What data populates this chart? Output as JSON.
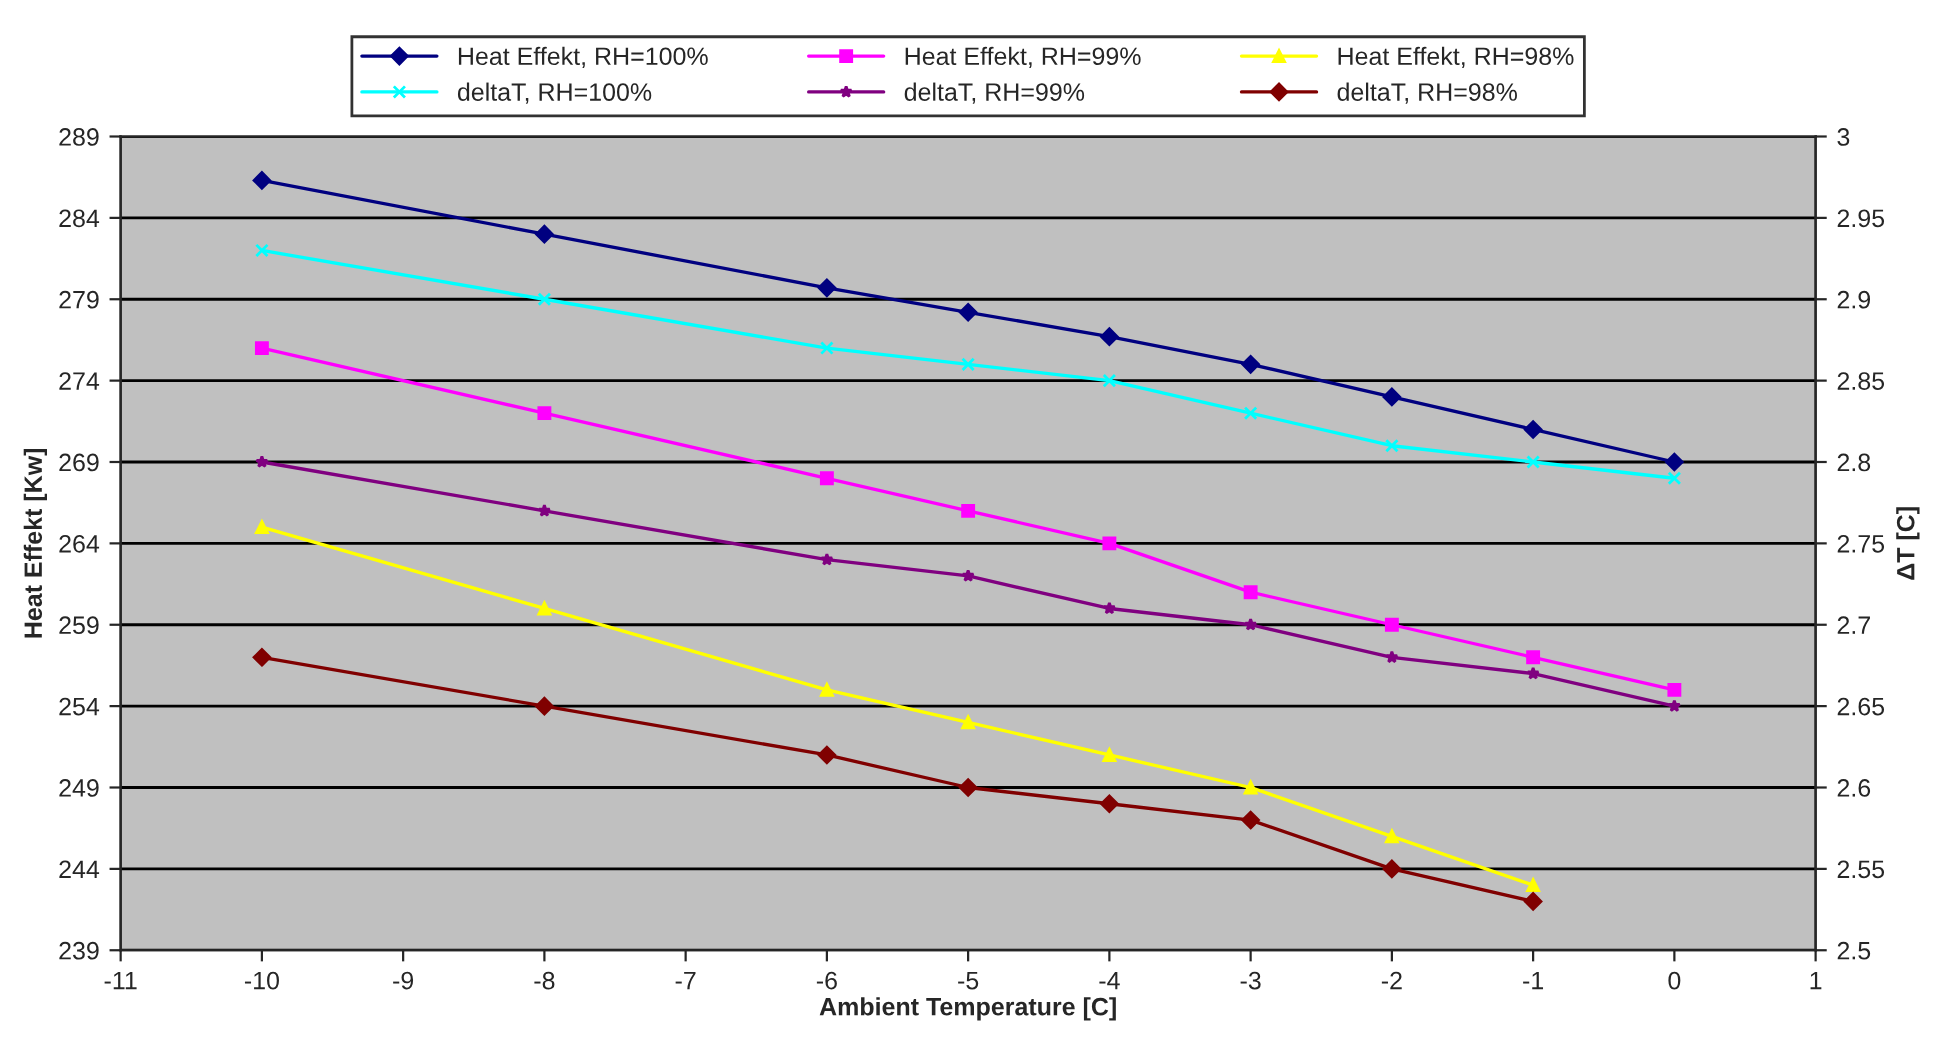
{
  "chart_data": {
    "type": "line",
    "xlabel": "Ambient Temperature [C]",
    "ylabel": "Heat Effekt [Kw]",
    "y2label": "ΔT [C]",
    "xlim": [
      -11,
      1
    ],
    "xticks": [
      -11,
      -10,
      -9,
      -8,
      -7,
      -6,
      -5,
      -4,
      -3,
      -2,
      -1,
      0,
      1
    ],
    "ylim": [
      239,
      289
    ],
    "yticks": [
      239,
      244,
      249,
      254,
      259,
      264,
      269,
      274,
      279,
      284,
      289
    ],
    "y2lim": [
      2.5,
      3
    ],
    "y2ticks": [
      2.5,
      2.55,
      2.6,
      2.65,
      2.7,
      2.75,
      2.8,
      2.85,
      2.9,
      2.95,
      3
    ],
    "grid": "y",
    "legend": "top",
    "series": [
      {
        "name": "Heat Effekt, RH=100%",
        "color": "#000080",
        "marker": "diamond",
        "x": [
          -10,
          -8,
          -6,
          -5,
          -4,
          -3,
          -2,
          -1,
          0
        ],
        "values": [
          286.3,
          283,
          279.7,
          278.2,
          276.7,
          275,
          273,
          271,
          269
        ]
      },
      {
        "name": "Heat Effekt, RH=99%",
        "color": "#ff00ff",
        "marker": "square",
        "x": [
          -10,
          -8,
          -6,
          -5,
          -4,
          -3,
          -2,
          -1,
          0
        ],
        "values": [
          276,
          272,
          268,
          266,
          264,
          261,
          259,
          257,
          255
        ]
      },
      {
        "name": "Heat Effekt, RH=98%",
        "color": "#ffff00",
        "marker": "triangle",
        "x": [
          -10,
          -8,
          -6,
          -5,
          -4,
          -3,
          -2,
          -1
        ],
        "values": [
          265,
          260,
          255,
          253,
          251,
          249,
          246,
          243
        ]
      },
      {
        "name": "deltaT, RH=100%",
        "color": "#00ffff",
        "marker": "cross",
        "axis": "y2",
        "x": [
          -10,
          -8,
          -6,
          -5,
          -4,
          -3,
          -2,
          -1,
          0
        ],
        "values": [
          2.93,
          2.9,
          2.87,
          2.86,
          2.85,
          2.83,
          2.81,
          2.8,
          2.79
        ]
      },
      {
        "name": "deltaT, RH=99%",
        "color": "#800080",
        "marker": "star",
        "axis": "y2",
        "x": [
          -10,
          -8,
          -6,
          -5,
          -4,
          -3,
          -2,
          -1,
          0
        ],
        "values": [
          2.8,
          2.77,
          2.74,
          2.73,
          2.71,
          2.7,
          2.68,
          2.67,
          2.65
        ]
      },
      {
        "name": "deltaT, RH=98%",
        "color": "#800000",
        "marker": "diamond",
        "axis": "y2",
        "x": [
          -10,
          -8,
          -6,
          -5,
          -4,
          -3,
          -2,
          -1
        ],
        "values": [
          2.68,
          2.65,
          2.62,
          2.6,
          2.59,
          2.58,
          2.55,
          2.53
        ]
      }
    ]
  }
}
